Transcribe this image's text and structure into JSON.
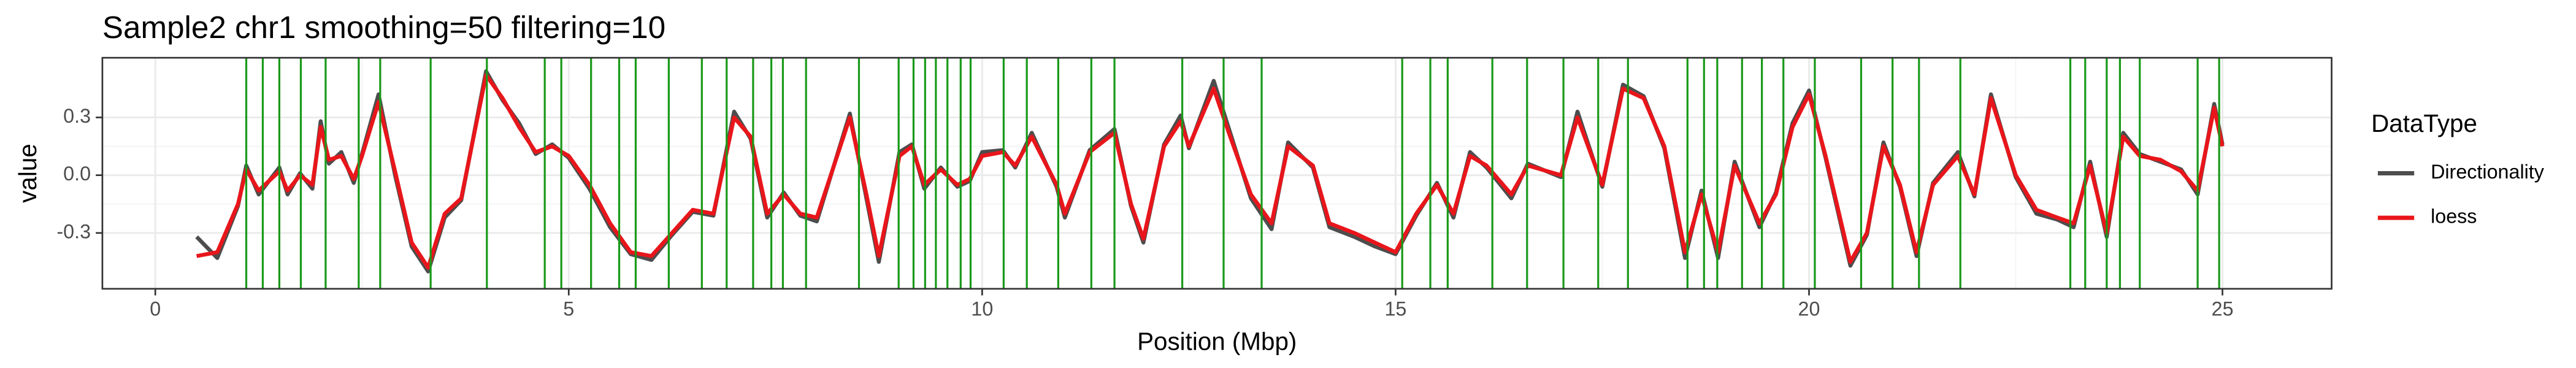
{
  "chart_data": {
    "type": "line",
    "title": "Sample2 chr1 smoothing=50 filtering=10",
    "x_label": "Position (Mbp)",
    "y_label": "value",
    "legend_title": "DataType",
    "legend": "right",
    "grid": true,
    "xlim": [
      -0.64,
      26.32
    ],
    "ylim": [
      -0.59,
      0.61
    ],
    "xticks": [
      0,
      5,
      10,
      15,
      20,
      25
    ],
    "yticks": [
      -0.3,
      {
        "value": 0,
        "label": "0.0"
      },
      0.3
    ],
    "x": [
      0.5,
      0.75,
      1.0,
      1.1,
      1.25,
      1.5,
      1.6,
      1.75,
      1.9,
      2.0,
      2.1,
      2.25,
      2.4,
      2.5,
      2.7,
      2.9,
      3.1,
      3.3,
      3.5,
      3.7,
      4.0,
      4.2,
      4.4,
      4.6,
      4.8,
      5.0,
      5.25,
      5.5,
      5.75,
      6.0,
      6.25,
      6.5,
      6.75,
      7.0,
      7.2,
      7.4,
      7.6,
      7.8,
      8.0,
      8.4,
      8.6,
      8.75,
      9.0,
      9.15,
      9.3,
      9.5,
      9.7,
      9.85,
      10.0,
      10.25,
      10.4,
      10.6,
      10.9,
      11.0,
      11.3,
      11.6,
      11.8,
      11.95,
      12.2,
      12.4,
      12.5,
      12.8,
      13.0,
      13.25,
      13.5,
      13.7,
      14.0,
      14.2,
      14.5,
      14.75,
      15.0,
      15.25,
      15.5,
      15.7,
      15.9,
      16.1,
      16.4,
      16.6,
      17.0,
      17.2,
      17.5,
      17.75,
      18.0,
      18.25,
      18.5,
      18.7,
      18.9,
      19.1,
      19.4,
      19.6,
      19.8,
      20.0,
      20.2,
      20.5,
      20.7,
      20.9,
      21.1,
      21.3,
      21.5,
      21.8,
      22.0,
      22.2,
      22.5,
      22.75,
      23.0,
      23.2,
      23.4,
      23.6,
      23.8,
      24.0,
      24.25,
      24.5,
      24.7,
      24.9,
      25.0
    ],
    "series": [
      {
        "name": "Directionality",
        "color": "#4d4d4d",
        "values": [
          -0.32,
          -0.43,
          -0.16,
          0.05,
          -0.1,
          0.04,
          -0.1,
          0.01,
          -0.07,
          0.28,
          0.06,
          0.12,
          -0.04,
          0.11,
          0.42,
          0.0,
          -0.37,
          -0.5,
          -0.22,
          -0.13,
          0.54,
          0.39,
          0.27,
          0.11,
          0.16,
          0.09,
          -0.07,
          -0.27,
          -0.41,
          -0.44,
          -0.31,
          -0.19,
          -0.21,
          0.33,
          0.19,
          -0.22,
          -0.09,
          -0.21,
          -0.24,
          0.32,
          -0.12,
          -0.45,
          0.12,
          0.16,
          -0.07,
          0.04,
          -0.06,
          -0.03,
          0.12,
          0.13,
          0.04,
          0.22,
          -0.06,
          -0.22,
          0.13,
          0.24,
          -0.16,
          -0.35,
          0.16,
          0.31,
          0.14,
          0.49,
          0.22,
          -0.12,
          -0.28,
          0.17,
          0.04,
          -0.27,
          -0.32,
          -0.37,
          -0.41,
          -0.21,
          -0.04,
          -0.22,
          0.12,
          0.04,
          -0.12,
          0.06,
          -0.01,
          0.33,
          -0.06,
          0.47,
          0.41,
          0.14,
          -0.43,
          -0.08,
          -0.43,
          0.07,
          -0.27,
          -0.09,
          0.27,
          0.44,
          0.09,
          -0.47,
          -0.31,
          0.17,
          -0.06,
          -0.42,
          -0.04,
          0.12,
          -0.11,
          0.42,
          -0.01,
          -0.2,
          -0.23,
          -0.27,
          0.07,
          -0.32,
          0.22,
          0.11,
          0.07,
          0.03,
          -0.1,
          0.37,
          0.16
        ]
      },
      {
        "name": "loess",
        "color": "#e8161b",
        "values": [
          -0.42,
          -0.4,
          -0.15,
          0.03,
          -0.08,
          0.02,
          -0.08,
          0.0,
          -0.05,
          0.25,
          0.08,
          0.1,
          -0.02,
          0.1,
          0.38,
          0.02,
          -0.35,
          -0.48,
          -0.2,
          -0.12,
          0.52,
          0.4,
          0.25,
          0.12,
          0.15,
          0.1,
          -0.05,
          -0.25,
          -0.4,
          -0.42,
          -0.3,
          -0.18,
          -0.2,
          0.3,
          0.2,
          -0.2,
          -0.1,
          -0.2,
          -0.22,
          0.3,
          -0.1,
          -0.42,
          0.1,
          0.15,
          -0.05,
          0.03,
          -0.05,
          -0.02,
          0.1,
          0.12,
          0.05,
          0.2,
          -0.05,
          -0.2,
          0.12,
          0.22,
          -0.15,
          -0.33,
          0.15,
          0.28,
          0.15,
          0.45,
          0.2,
          -0.1,
          -0.25,
          0.15,
          0.05,
          -0.25,
          -0.3,
          -0.35,
          -0.4,
          -0.2,
          -0.05,
          -0.2,
          0.1,
          0.05,
          -0.1,
          0.05,
          0.0,
          0.3,
          -0.05,
          0.45,
          0.4,
          0.15,
          -0.4,
          -0.1,
          -0.4,
          0.05,
          -0.25,
          -0.1,
          0.25,
          0.42,
          0.1,
          -0.45,
          -0.3,
          0.15,
          -0.05,
          -0.4,
          -0.05,
          0.1,
          -0.1,
          0.4,
          0.0,
          -0.18,
          -0.22,
          -0.25,
          0.05,
          -0.3,
          0.2,
          0.1,
          0.08,
          0.02,
          -0.08,
          0.35,
          0.15
        ]
      }
    ],
    "boundary_color": "#1a9a1a",
    "boundaries": [
      1.1,
      1.3,
      1.5,
      1.76,
      2.06,
      2.46,
      2.72,
      3.33,
      4.01,
      4.71,
      4.91,
      5.27,
      5.61,
      5.81,
      6.21,
      6.61,
      6.91,
      7.23,
      7.45,
      7.59,
      7.87,
      8.51,
      8.99,
      9.17,
      9.31,
      9.44,
      9.58,
      9.74,
      9.86,
      10.26,
      10.54,
      10.92,
      11.32,
      11.6,
      12.42,
      12.92,
      13.38,
      15.08,
      15.42,
      15.63,
      16.17,
      16.59,
      17.03,
      17.45,
      17.81,
      18.53,
      18.73,
      18.89,
      19.19,
      19.43,
      19.69,
      20.07,
      20.63,
      21.01,
      21.33,
      21.83,
      23.16,
      23.34,
      23.6,
      23.76,
      24.0,
      24.7,
      24.96
    ]
  }
}
